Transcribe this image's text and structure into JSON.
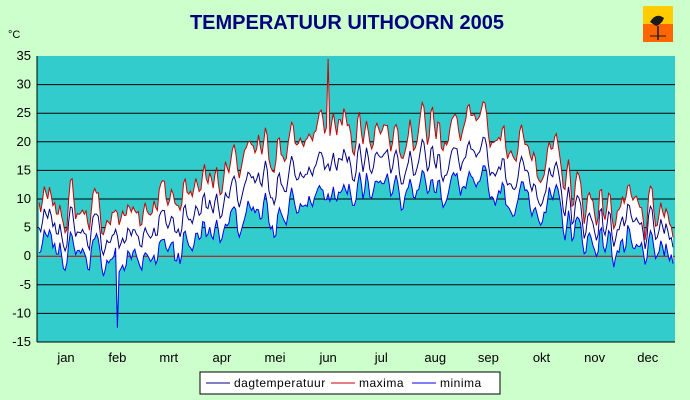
{
  "chart_data": {
    "type": "area",
    "title": "TEMPERATUUR UITHOORN 2005",
    "ylabel": "°C",
    "ylim": [
      -15,
      35
    ],
    "yticks": [
      35,
      30,
      25,
      20,
      15,
      10,
      5,
      0,
      -5,
      -10,
      -15
    ],
    "grid": true,
    "legend_position": "bottom",
    "colors": {
      "plot_bg": "#33cccc",
      "page_bg": "#ccffcc",
      "band_fill": "#ffffff",
      "maxima": "#cc0000",
      "minima": "#0000ee",
      "dagtemperatuur": "#000080",
      "gridline": "#000000",
      "zero_line": "#cc0000"
    },
    "categories": [
      "jan",
      "feb",
      "mrt",
      "apr",
      "mei",
      "jun",
      "jul",
      "aug",
      "sep",
      "okt",
      "nov",
      "dec"
    ],
    "x_unit": "month",
    "monthly": {
      "maxima": [
        8,
        6,
        10,
        14,
        18,
        22,
        22,
        22,
        21,
        17,
        9,
        6
      ],
      "dagtemperatuur": [
        5,
        3,
        6,
        10,
        13,
        16,
        18,
        17,
        16,
        13,
        6,
        4
      ],
      "minima": [
        2,
        0,
        2,
        6,
        8,
        11,
        14,
        13,
        12,
        10,
        3,
        1
      ]
    },
    "series": [
      {
        "name": "dagtemperatuur",
        "color": "#000080"
      },
      {
        "name": "maxima",
        "color": "#cc0000"
      },
      {
        "name": "minima",
        "color": "#0000ee"
      }
    ],
    "annotations": [
      {
        "label": "max",
        "value": 34.5,
        "month": "jun"
      },
      {
        "label": "min",
        "value": -12.5,
        "month": "feb"
      }
    ]
  }
}
